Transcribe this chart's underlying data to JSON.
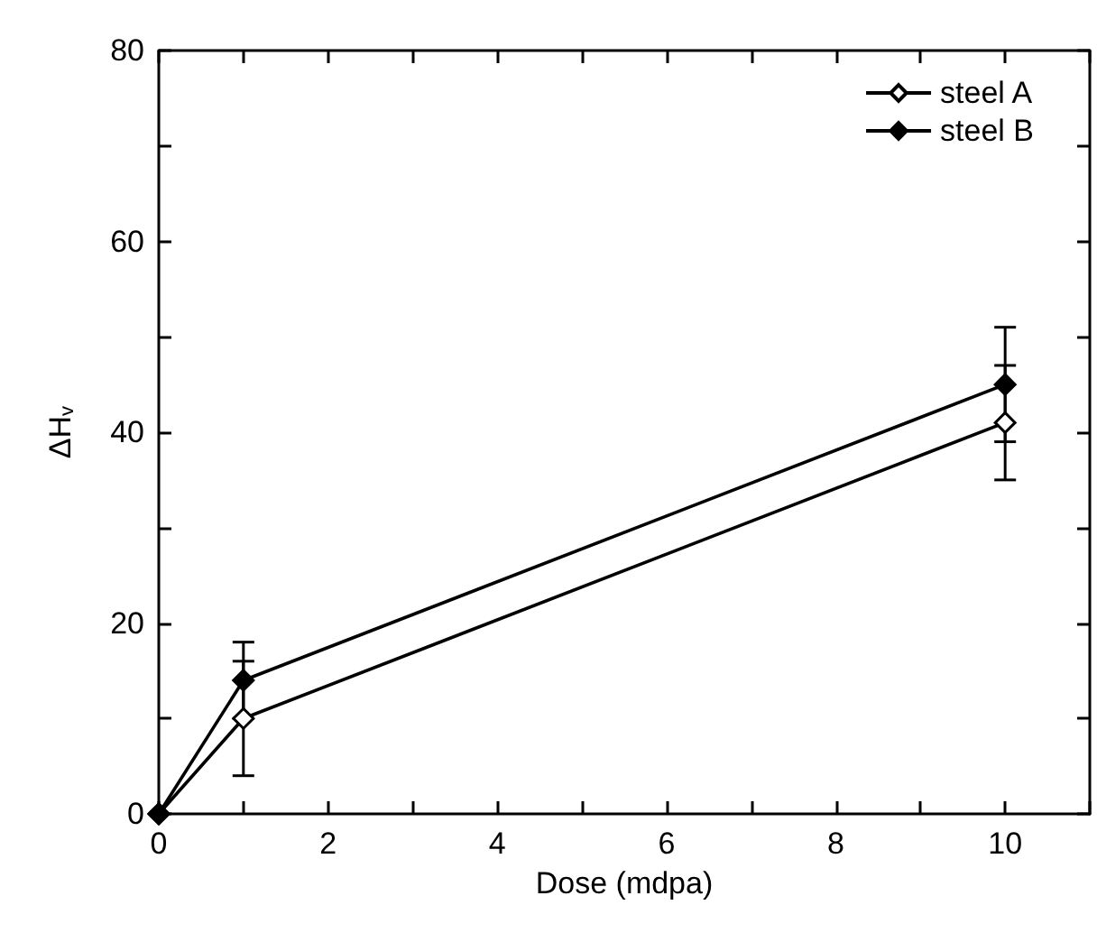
{
  "chart_data": {
    "type": "line",
    "xlabel": "Dose (mdpa)",
    "ylabel": "ΔH$_{v}$",
    "x": [
      0,
      1,
      10
    ],
    "series": [
      {
        "name": "steel A",
        "color": "#000000",
        "values": [
          0,
          10,
          41
        ],
        "errors": [
          null,
          6,
          6
        ]
      },
      {
        "name": "steel B",
        "color": "#000000",
        "values": [
          0,
          14,
          45
        ],
        "errors": [
          null,
          4,
          6
        ]
      }
    ],
    "xlim": [
      0,
      11
    ],
    "xticks": [
      0,
      {
        "value": 1,
        "label": null
      },
      2,
      {
        "value": 3,
        "label": null
      },
      4,
      {
        "value": 5,
        "label": null
      },
      6,
      {
        "value": 7,
        "label": null
      },
      8,
      {
        "value": 9,
        "label": null
      },
      10,
      {
        "value": 11,
        "label": null
      }
    ],
    "ylim": [
      0,
      80
    ],
    "yticks": [
      0,
      {
        "value": 10,
        "label": null
      },
      20,
      {
        "value": 30,
        "label": null
      },
      40,
      {
        "value": 50,
        "label": null
      },
      60,
      {
        "value": 70,
        "label": null
      },
      80
    ],
    "grid": false,
    "legend": "top right",
    "marker": "diamond",
    "line_style": "solid"
  }
}
